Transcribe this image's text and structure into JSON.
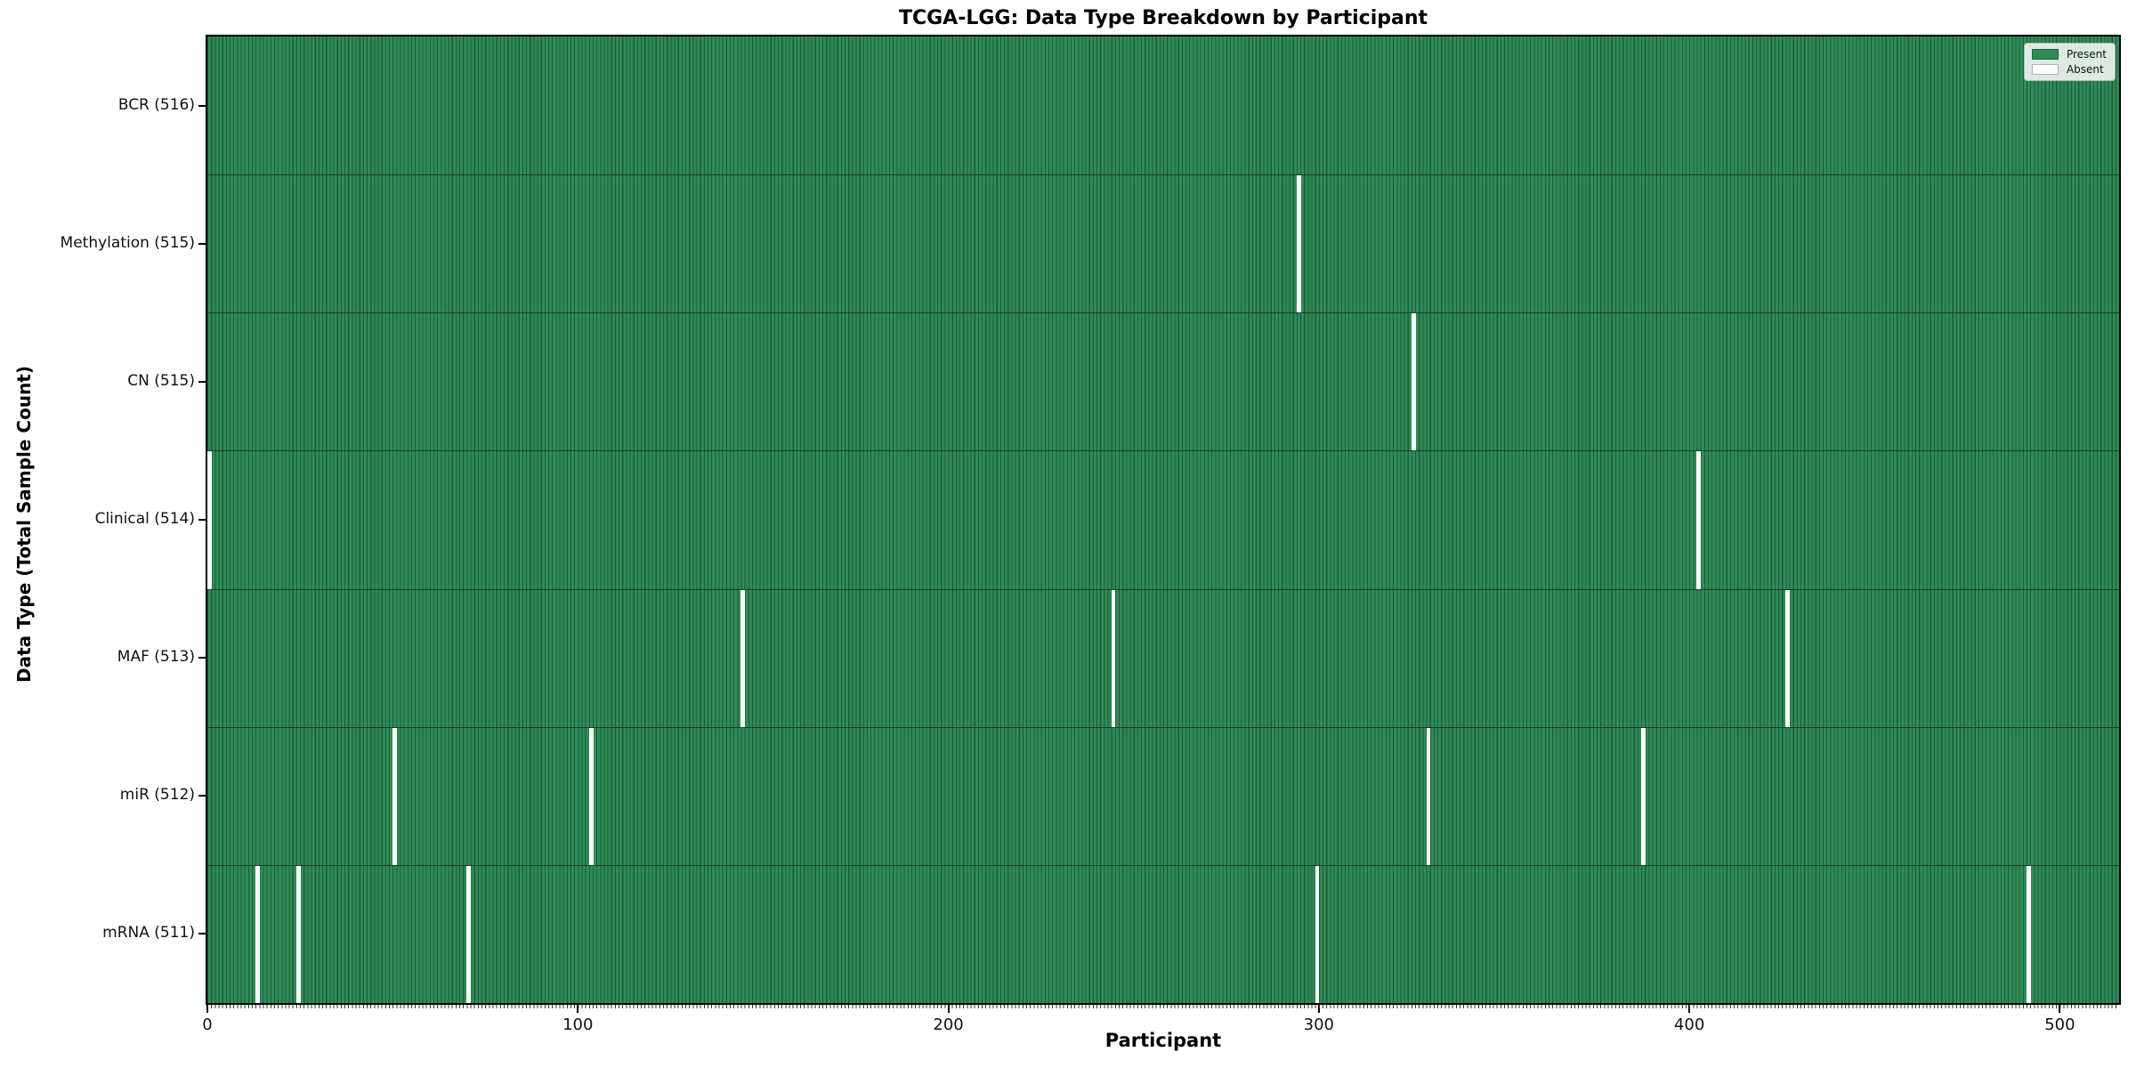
{
  "chart_data": {
    "type": "heatmap",
    "title": "TCGA-LGG: Data Type Breakdown by Participant",
    "xlabel": "Participant",
    "ylabel": "Data Type (Total Sample Count)",
    "n_participants": 516,
    "x_ticks": [
      0,
      100,
      200,
      300,
      400,
      500
    ],
    "xlim": [
      0,
      516
    ],
    "grid": false,
    "legend": {
      "position": "upper-right",
      "entries": [
        {
          "label": "Present",
          "color": "#2e8b57"
        },
        {
          "label": "Absent",
          "color": "#ffffff"
        }
      ]
    },
    "rows": [
      {
        "label": "BCR (516)",
        "data_type": "BCR",
        "total_samples": 516,
        "absent_participants": []
      },
      {
        "label": "Methylation (515)",
        "data_type": "Methylation",
        "total_samples": 515,
        "absent_participants": [
          294
        ]
      },
      {
        "label": "CN (515)",
        "data_type": "CN",
        "total_samples": 515,
        "absent_participants": [
          325
        ]
      },
      {
        "label": "Clinical (514)",
        "data_type": "Clinical",
        "total_samples": 514,
        "absent_participants": [
          0,
          402
        ]
      },
      {
        "label": "MAF (513)",
        "data_type": "MAF",
        "total_samples": 513,
        "absent_participants": [
          144,
          244,
          426
        ]
      },
      {
        "label": "miR (512)",
        "data_type": "miR",
        "total_samples": 512,
        "absent_participants": [
          50,
          103,
          329,
          387
        ]
      },
      {
        "label": "mRNA (511)",
        "data_type": "mRNA",
        "total_samples": 511,
        "absent_participants": [
          13,
          24,
          70,
          299,
          491
        ]
      }
    ],
    "colors": {
      "present_fill": "#2e8b57",
      "present_edge": "#1d5c38",
      "absent_fill": "#ffffff",
      "row_separator": "#173d27",
      "axis_spine": "#000000"
    }
  }
}
